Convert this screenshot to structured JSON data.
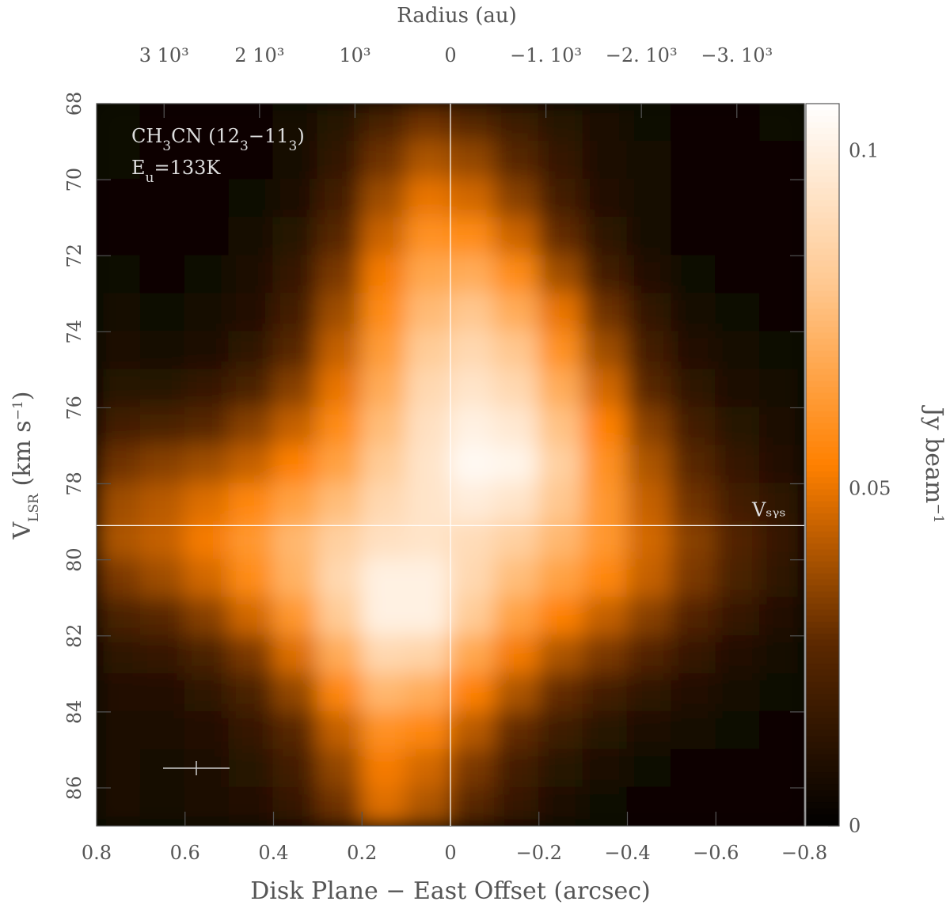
{
  "chart_data": {
    "type": "heatmap",
    "xlabel": "Disk Plane − East Offset (arcsec)",
    "ylabel_parts": [
      "V",
      "LSR",
      " (km s",
      "−1",
      ")"
    ],
    "x2label": "Radius (au)",
    "colorbar_label_parts": [
      "Jy beam",
      "−1"
    ],
    "annotation_line1_parts": [
      "CH",
      "3",
      "CN (12",
      "3",
      "−11",
      "3",
      ")"
    ],
    "annotation_line2_parts": [
      "E",
      "u",
      "=133K"
    ],
    "vsys": {
      "value": 79.1,
      "label": "Vₛᵧₛ"
    },
    "offset_zero": 0,
    "xlim": [
      0.8,
      -0.8
    ],
    "xticks": [
      0.8,
      0.6,
      0.4,
      0.2,
      0,
      {
        "value": -0.2,
        "label": "−0.2"
      },
      {
        "value": -0.4,
        "label": "−0.4"
      },
      {
        "value": -0.6,
        "label": "−0.6"
      },
      {
        "value": -0.8,
        "label": "−0.8"
      }
    ],
    "x2lim": [
      3707,
      -3707
    ],
    "x2ticks": [
      {
        "value": 3000,
        "label": "3 10³"
      },
      {
        "value": 2000,
        "label": "2 10³"
      },
      {
        "value": 1000,
        "label": "10³"
      },
      0,
      {
        "value": -1000,
        "label": "−1. 10³"
      },
      {
        "value": -2000,
        "label": "−2. 10³"
      },
      {
        "value": -3000,
        "label": "−3. 10³"
      }
    ],
    "ylim": [
      68,
      87
    ],
    "yticks": [
      68,
      70,
      72,
      74,
      76,
      78,
      80,
      82,
      84,
      86
    ],
    "clim": [
      0,
      0.107
    ],
    "cticks": [
      0,
      0.05,
      0.1
    ],
    "colormap": [
      "#000000",
      "#5a2800",
      "#ff8000",
      "#ffc890",
      "#ffffff"
    ],
    "x": [
      0.75,
      0.65,
      0.55,
      0.45,
      0.35,
      0.25,
      0.15,
      0.05,
      -0.05,
      -0.15,
      -0.25,
      -0.35,
      -0.45,
      -0.55,
      -0.65,
      -0.75
    ],
    "y": [
      68.5,
      69.5,
      70.5,
      71.5,
      72.5,
      73.5,
      74.5,
      75.5,
      76.5,
      77.5,
      78.5,
      79.5,
      80.5,
      81.5,
      82.5,
      83.5,
      84.5,
      85.5,
      86.5
    ],
    "z": [
      [
        0.005,
        0.003,
        0.003,
        0.004,
        0.006,
        0.012,
        0.022,
        0.03,
        0.025,
        0.018,
        0.012,
        0.008,
        0.005,
        0.004,
        0.004,
        0.005
      ],
      [
        0.005,
        0.003,
        0.003,
        0.004,
        0.007,
        0.015,
        0.03,
        0.04,
        0.036,
        0.026,
        0.016,
        0.009,
        0.006,
        0.004,
        0.003,
        0.004
      ],
      [
        0.004,
        0.003,
        0.003,
        0.005,
        0.009,
        0.02,
        0.038,
        0.05,
        0.046,
        0.034,
        0.02,
        0.01,
        0.006,
        0.004,
        0.003,
        0.003
      ],
      [
        0.004,
        0.003,
        0.004,
        0.006,
        0.012,
        0.026,
        0.045,
        0.06,
        0.058,
        0.045,
        0.028,
        0.014,
        0.007,
        0.004,
        0.003,
        0.003
      ],
      [
        0.005,
        0.004,
        0.005,
        0.008,
        0.016,
        0.032,
        0.052,
        0.068,
        0.07,
        0.058,
        0.038,
        0.02,
        0.01,
        0.005,
        0.004,
        0.004
      ],
      [
        0.006,
        0.005,
        0.006,
        0.01,
        0.02,
        0.038,
        0.058,
        0.075,
        0.08,
        0.07,
        0.05,
        0.03,
        0.015,
        0.007,
        0.005,
        0.004
      ],
      [
        0.008,
        0.007,
        0.009,
        0.014,
        0.026,
        0.044,
        0.064,
        0.082,
        0.088,
        0.08,
        0.06,
        0.038,
        0.02,
        0.01,
        0.006,
        0.005
      ],
      [
        0.012,
        0.012,
        0.016,
        0.022,
        0.034,
        0.05,
        0.07,
        0.088,
        0.094,
        0.088,
        0.07,
        0.046,
        0.026,
        0.014,
        0.008,
        0.006
      ],
      [
        0.02,
        0.022,
        0.026,
        0.034,
        0.044,
        0.058,
        0.076,
        0.092,
        0.1,
        0.096,
        0.078,
        0.054,
        0.034,
        0.02,
        0.012,
        0.008
      ],
      [
        0.03,
        0.034,
        0.038,
        0.044,
        0.054,
        0.066,
        0.082,
        0.094,
        0.104,
        0.102,
        0.084,
        0.06,
        0.04,
        0.026,
        0.016,
        0.01
      ],
      [
        0.038,
        0.042,
        0.048,
        0.056,
        0.066,
        0.076,
        0.088,
        0.094,
        0.098,
        0.094,
        0.08,
        0.062,
        0.044,
        0.03,
        0.02,
        0.014
      ],
      [
        0.04,
        0.044,
        0.052,
        0.062,
        0.074,
        0.084,
        0.092,
        0.094,
        0.09,
        0.084,
        0.074,
        0.062,
        0.046,
        0.034,
        0.024,
        0.016
      ],
      [
        0.032,
        0.038,
        0.046,
        0.058,
        0.072,
        0.088,
        0.1,
        0.1,
        0.088,
        0.076,
        0.066,
        0.056,
        0.044,
        0.032,
        0.022,
        0.014
      ],
      [
        0.022,
        0.026,
        0.034,
        0.046,
        0.062,
        0.082,
        0.1,
        0.1,
        0.082,
        0.066,
        0.054,
        0.044,
        0.034,
        0.024,
        0.016,
        0.01
      ],
      [
        0.014,
        0.016,
        0.022,
        0.032,
        0.048,
        0.07,
        0.088,
        0.086,
        0.068,
        0.052,
        0.04,
        0.032,
        0.024,
        0.016,
        0.01,
        0.007
      ],
      [
        0.01,
        0.01,
        0.014,
        0.022,
        0.036,
        0.056,
        0.074,
        0.07,
        0.054,
        0.04,
        0.028,
        0.02,
        0.014,
        0.01,
        0.007,
        0.005
      ],
      [
        0.008,
        0.008,
        0.01,
        0.016,
        0.026,
        0.044,
        0.06,
        0.056,
        0.042,
        0.028,
        0.018,
        0.012,
        0.008,
        0.006,
        0.005,
        0.004
      ],
      [
        0.008,
        0.007,
        0.009,
        0.012,
        0.02,
        0.036,
        0.052,
        0.046,
        0.032,
        0.02,
        0.012,
        0.008,
        0.005,
        0.004,
        0.004,
        0.004
      ],
      [
        0.008,
        0.006,
        0.008,
        0.01,
        0.016,
        0.03,
        0.048,
        0.04,
        0.026,
        0.016,
        0.008,
        0.005,
        0.004,
        0.003,
        0.003,
        0.003
      ]
    ]
  }
}
